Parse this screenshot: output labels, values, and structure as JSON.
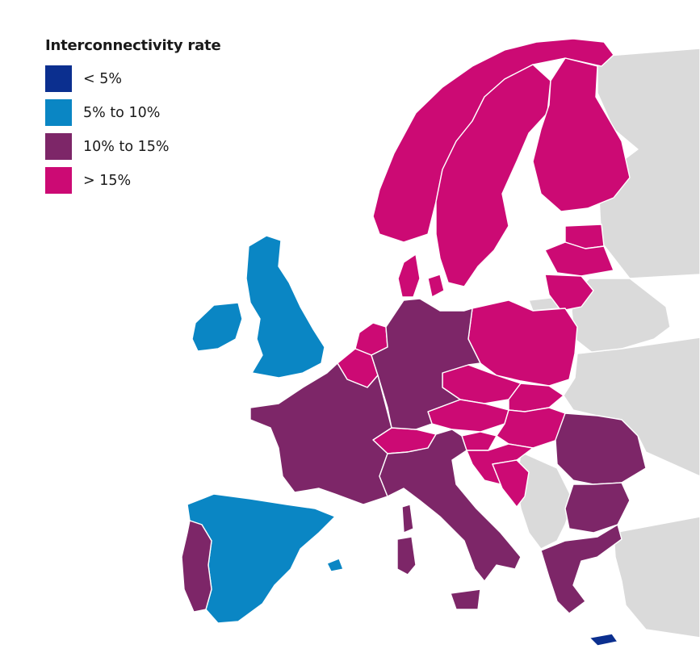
{
  "legend": {
    "title": "Interconnectivity rate",
    "items": [
      {
        "label": "< 5%",
        "color": "#0b2f8f"
      },
      {
        "label": "5% to 10%",
        "color": "#0a86c4"
      },
      {
        "label": "10% to 15%",
        "color": "#7d2668"
      },
      {
        "label": "> 15%",
        "color": "#cc0a74"
      }
    ]
  },
  "colors": {
    "non_member": "#dadada",
    "border": "#ffffff",
    "background": "#ffffff"
  },
  "countries": [
    {
      "name": "norway",
      "category": "> 15%"
    },
    {
      "name": "sweden",
      "category": "> 15%"
    },
    {
      "name": "finland",
      "category": "> 15%"
    },
    {
      "name": "denmark",
      "category": "> 15%"
    },
    {
      "name": "estonia",
      "category": "> 15%"
    },
    {
      "name": "latvia",
      "category": "> 15%"
    },
    {
      "name": "lithuania",
      "category": "> 15%"
    },
    {
      "name": "poland",
      "category": "> 15%"
    },
    {
      "name": "netherlands",
      "category": "> 15%"
    },
    {
      "name": "belgium",
      "category": "> 15%"
    },
    {
      "name": "luxembourg",
      "category": "> 15%"
    },
    {
      "name": "czechia",
      "category": "> 15%"
    },
    {
      "name": "slovakia",
      "category": "> 15%"
    },
    {
      "name": "austria",
      "category": "> 15%"
    },
    {
      "name": "hungary",
      "category": "> 15%"
    },
    {
      "name": "slovenia",
      "category": "> 15%"
    },
    {
      "name": "croatia",
      "category": "> 15%"
    },
    {
      "name": "switzerland",
      "category": "> 15%"
    },
    {
      "name": "bosnia-herzegovina",
      "category": "> 15%"
    },
    {
      "name": "germany",
      "category": "10% to 15%"
    },
    {
      "name": "france",
      "category": "10% to 15%"
    },
    {
      "name": "italy",
      "category": "10% to 15%"
    },
    {
      "name": "sardinia",
      "category": "10% to 15%"
    },
    {
      "name": "corsica",
      "category": "10% to 15%"
    },
    {
      "name": "sicily",
      "category": "10% to 15%"
    },
    {
      "name": "portugal",
      "category": "10% to 15%"
    },
    {
      "name": "romania",
      "category": "10% to 15%"
    },
    {
      "name": "bulgaria",
      "category": "10% to 15%"
    },
    {
      "name": "greece",
      "category": "10% to 15%"
    },
    {
      "name": "united-kingdom",
      "category": "5% to 10%"
    },
    {
      "name": "ireland",
      "category": "5% to 10%"
    },
    {
      "name": "spain",
      "category": "5% to 10%"
    },
    {
      "name": "balearic-islands",
      "category": "5% to 10%"
    },
    {
      "name": "cyprus",
      "category": "< 5%"
    }
  ]
}
